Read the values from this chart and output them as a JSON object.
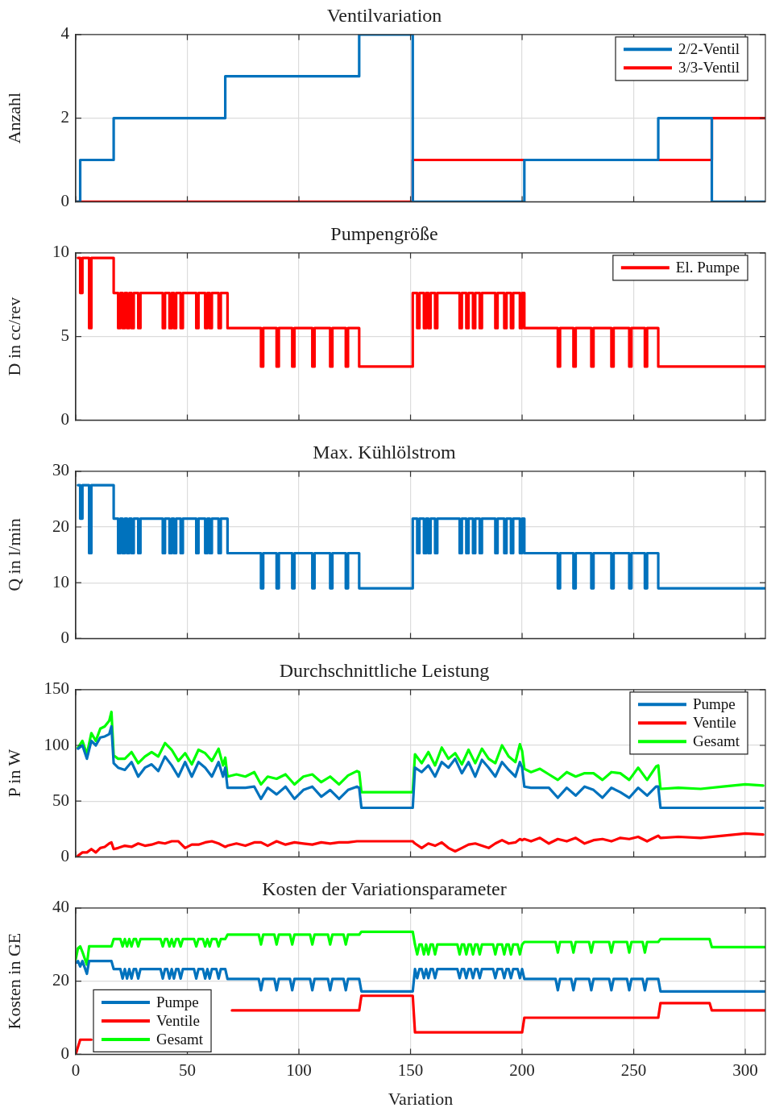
{
  "chart_data": [
    {
      "type": "step",
      "title": "Ventilvariation",
      "ylabel": "Anzahl",
      "xlim": [
        0,
        309
      ],
      "xticks": [
        0,
        50,
        100,
        150,
        200,
        250,
        300
      ],
      "ylim": [
        0,
        4
      ],
      "yticks": [
        0,
        2,
        4
      ],
      "grid": true,
      "legend": "top right",
      "tick_labels": "y",
      "series": [
        {
          "name": "2/2-Ventil",
          "color": "#0072bd",
          "x": [
            0,
            2,
            17,
            67,
            127,
            151,
            201,
            261,
            285,
            309
          ],
          "values": [
            0,
            1,
            2,
            3,
            4,
            0,
            1,
            2,
            0,
            0
          ]
        },
        {
          "name": "3/3-Ventil",
          "color": "#ff0000",
          "x": [
            0,
            151,
            285,
            309
          ],
          "values": [
            0,
            1,
            2,
            2
          ]
        }
      ]
    },
    {
      "type": "step",
      "title": "Pumpengröße",
      "ylabel": "D in cc/rev",
      "xlim": [
        0,
        309
      ],
      "xticks": [
        0,
        50,
        100,
        150,
        200,
        250,
        300
      ],
      "ylim": [
        0,
        10
      ],
      "yticks": [
        0,
        5,
        10
      ],
      "grid": true,
      "legend": "top right",
      "tick_labels": "y",
      "x": [
        1,
        2,
        3,
        6,
        7,
        17,
        19,
        20,
        21,
        22,
        23,
        24,
        25,
        26,
        28,
        29,
        39,
        40,
        42,
        43,
        44,
        45,
        47,
        48,
        54,
        55,
        58,
        59,
        60,
        61,
        64,
        65,
        68,
        83,
        84,
        90,
        91,
        97,
        98,
        106,
        107,
        114,
        115,
        121,
        122,
        127,
        151,
        153,
        154,
        156,
        157,
        158,
        159,
        161,
        162,
        172,
        173,
        175,
        176,
        178,
        179,
        181,
        182,
        188,
        189,
        192,
        193,
        195,
        196,
        199,
        200,
        201,
        216,
        217,
        223,
        224,
        231,
        232,
        240,
        241,
        248,
        249,
        255,
        256,
        261,
        309
      ],
      "series": [
        {
          "name": "El. Pumpe",
          "color": "#ff0000",
          "values": [
            9.7,
            7.6,
            9.7,
            5.5,
            9.7,
            7.6,
            5.5,
            7.6,
            5.5,
            7.6,
            5.5,
            7.6,
            5.5,
            7.6,
            5.5,
            7.6,
            5.5,
            7.6,
            5.5,
            7.6,
            5.5,
            7.6,
            5.5,
            7.6,
            5.5,
            7.6,
            5.5,
            7.6,
            5.5,
            7.6,
            5.5,
            7.6,
            5.5,
            3.2,
            5.5,
            3.2,
            5.5,
            3.2,
            5.5,
            3.2,
            5.5,
            3.2,
            5.5,
            3.2,
            5.5,
            3.2,
            7.6,
            5.5,
            7.6,
            5.5,
            7.6,
            5.5,
            7.6,
            5.5,
            7.6,
            5.5,
            7.6,
            5.5,
            7.6,
            5.5,
            7.6,
            5.5,
            7.6,
            5.5,
            7.6,
            5.5,
            7.6,
            5.5,
            7.6,
            5.5,
            7.6,
            5.5,
            3.2,
            5.5,
            3.2,
            5.5,
            3.2,
            5.5,
            3.2,
            5.5,
            3.2,
            5.5,
            3.2,
            5.5,
            3.2,
            3.2
          ]
        }
      ]
    },
    {
      "type": "step",
      "title": "Max. Kühlölstrom",
      "ylabel": "Q in l/min",
      "xlim": [
        0,
        309
      ],
      "xticks": [
        0,
        50,
        100,
        150,
        200,
        250,
        300
      ],
      "ylim": [
        0,
        30
      ],
      "yticks": [
        0,
        10,
        20,
        30
      ],
      "grid": true,
      "tick_labels": "y",
      "x": [
        1,
        2,
        3,
        6,
        7,
        17,
        19,
        20,
        21,
        22,
        23,
        24,
        25,
        26,
        28,
        29,
        39,
        40,
        42,
        43,
        44,
        45,
        47,
        48,
        54,
        55,
        58,
        59,
        60,
        61,
        64,
        65,
        68,
        83,
        84,
        90,
        91,
        97,
        98,
        106,
        107,
        114,
        115,
        121,
        122,
        127,
        151,
        153,
        154,
        156,
        157,
        158,
        159,
        161,
        162,
        172,
        173,
        175,
        176,
        178,
        179,
        181,
        182,
        188,
        189,
        192,
        193,
        195,
        196,
        199,
        200,
        201,
        216,
        217,
        223,
        224,
        231,
        232,
        240,
        241,
        248,
        249,
        255,
        256,
        261,
        309
      ],
      "series": [
        {
          "color": "#0072bd",
          "values": [
            27.5,
            21.5,
            27.5,
            15.3,
            27.5,
            21.5,
            15.3,
            21.5,
            15.3,
            21.5,
            15.3,
            21.5,
            15.3,
            21.5,
            15.3,
            21.5,
            15.3,
            21.5,
            15.3,
            21.5,
            15.3,
            21.5,
            15.3,
            21.5,
            15.3,
            21.5,
            15.3,
            21.5,
            15.3,
            21.5,
            15.3,
            21.5,
            15.3,
            9,
            15.3,
            9,
            15.3,
            9,
            15.3,
            9,
            15.3,
            9,
            15.3,
            9,
            15.3,
            9,
            21.5,
            15.3,
            21.5,
            15.3,
            21.5,
            15.3,
            21.5,
            15.3,
            21.5,
            15.3,
            21.5,
            15.3,
            21.5,
            15.3,
            21.5,
            15.3,
            21.5,
            15.3,
            21.5,
            15.3,
            21.5,
            15.3,
            21.5,
            15.3,
            21.5,
            15.3,
            9,
            15.3,
            9,
            15.3,
            9,
            15.3,
            9,
            15.3,
            9,
            15.3,
            9,
            15.3,
            9,
            9
          ]
        }
      ]
    },
    {
      "type": "line",
      "title": "Durchschnittliche Leistung",
      "ylabel": "P in W",
      "xlim": [
        0,
        309
      ],
      "xticks": [
        0,
        50,
        100,
        150,
        200,
        250,
        300
      ],
      "ylim": [
        0,
        150
      ],
      "yticks": [
        0,
        50,
        100,
        150
      ],
      "grid": true,
      "legend": "top right",
      "tick_labels": "y",
      "x": [
        1,
        3,
        5,
        7,
        9,
        11,
        13,
        15,
        16,
        17,
        19,
        22,
        25,
        28,
        31,
        34,
        37,
        40,
        43,
        46,
        49,
        52,
        55,
        58,
        61,
        64,
        66,
        67,
        68,
        72,
        76,
        80,
        83,
        86,
        90,
        94,
        98,
        102,
        106,
        110,
        114,
        118,
        122,
        126,
        127,
        128,
        140,
        150,
        151,
        152,
        155,
        158,
        161,
        164,
        167,
        170,
        173,
        176,
        179,
        182,
        185,
        188,
        191,
        194,
        197,
        199,
        200,
        201,
        204,
        208,
        212,
        216,
        220,
        224,
        228,
        232,
        236,
        240,
        244,
        248,
        252,
        256,
        260,
        261,
        262,
        270,
        280,
        290,
        300,
        308
      ],
      "series": [
        {
          "name": "Pumpe",
          "color": "#0072bd",
          "values": [
            97,
            100,
            88,
            104,
            100,
            107,
            108,
            110,
            117,
            84,
            80,
            78,
            85,
            72,
            80,
            83,
            77,
            90,
            82,
            72,
            85,
            72,
            85,
            80,
            72,
            85,
            72,
            80,
            62,
            62,
            62,
            63,
            52,
            62,
            56,
            63,
            52,
            60,
            63,
            54,
            60,
            52,
            60,
            63,
            62,
            44,
            44,
            44,
            44,
            80,
            76,
            82,
            72,
            85,
            80,
            88,
            75,
            85,
            72,
            87,
            80,
            72,
            85,
            78,
            72,
            85,
            80,
            63,
            62,
            62,
            62,
            53,
            62,
            55,
            63,
            60,
            53,
            62,
            58,
            53,
            62,
            55,
            63,
            63,
            44,
            44,
            44,
            44,
            44,
            44
          ]
        },
        {
          "name": "Ventile",
          "color": "#ff0000",
          "values": [
            1,
            4,
            4,
            7,
            4,
            8,
            9,
            12,
            13,
            7,
            8,
            10,
            9,
            12,
            10,
            11,
            13,
            12,
            14,
            14,
            8,
            11,
            11,
            13,
            14,
            12,
            10,
            9,
            10,
            12,
            10,
            13,
            13,
            10,
            14,
            11,
            13,
            12,
            11,
            13,
            12,
            13,
            13,
            14,
            14,
            14,
            14,
            14,
            14,
            12,
            8,
            12,
            10,
            13,
            8,
            5,
            8,
            11,
            12,
            10,
            8,
            12,
            15,
            12,
            13,
            16,
            15,
            16,
            14,
            17,
            12,
            16,
            14,
            17,
            12,
            15,
            16,
            14,
            17,
            16,
            18,
            14,
            18,
            19,
            17,
            18,
            17,
            19,
            21,
            20
          ]
        },
        {
          "name": "Gesamt",
          "color": "#00ff00",
          "values": [
            98,
            104,
            92,
            111,
            104,
            115,
            117,
            122,
            130,
            91,
            88,
            88,
            94,
            84,
            90,
            94,
            90,
            102,
            96,
            86,
            93,
            83,
            96,
            93,
            86,
            97,
            82,
            89,
            72,
            74,
            72,
            76,
            65,
            72,
            70,
            74,
            65,
            72,
            74,
            67,
            72,
            65,
            73,
            77,
            76,
            58,
            58,
            58,
            58,
            92,
            84,
            94,
            82,
            98,
            88,
            93,
            83,
            96,
            84,
            97,
            88,
            84,
            100,
            90,
            85,
            101,
            95,
            79,
            76,
            79,
            74,
            69,
            76,
            72,
            75,
            75,
            69,
            76,
            75,
            69,
            80,
            69,
            81,
            82,
            61,
            62,
            61,
            63,
            65,
            64
          ]
        }
      ]
    },
    {
      "type": "line",
      "title": "Kosten der Variationsparameter",
      "ylabel": "Kosten in GE",
      "xlabel": "Variation",
      "xlim": [
        0,
        309
      ],
      "xticks": [
        0,
        50,
        100,
        150,
        200,
        250,
        300
      ],
      "ylim": [
        0,
        40
      ],
      "yticks": [
        0,
        20,
        40
      ],
      "grid": true,
      "legend": "bottom left",
      "x": [
        0,
        1,
        2,
        3,
        5,
        6,
        16,
        17,
        20,
        21,
        22,
        23,
        24,
        25,
        26,
        27,
        28,
        29,
        38,
        39,
        40,
        41,
        42,
        43,
        44,
        45,
        46,
        47,
        48,
        53,
        54,
        55,
        57,
        58,
        59,
        60,
        61,
        63,
        64,
        65,
        67,
        68,
        82,
        83,
        84,
        89,
        90,
        91,
        96,
        97,
        98,
        105,
        106,
        107,
        113,
        114,
        115,
        120,
        121,
        122,
        127,
        128,
        151,
        152,
        153,
        154,
        155,
        156,
        157,
        158,
        159,
        160,
        161,
        162,
        171,
        172,
        173,
        174,
        175,
        176,
        177,
        178,
        179,
        180,
        181,
        182,
        187,
        188,
        189,
        191,
        192,
        193,
        194,
        195,
        196,
        198,
        199,
        200,
        201,
        215,
        216,
        217,
        222,
        223,
        224,
        230,
        231,
        232,
        239,
        240,
        241,
        247,
        248,
        249,
        254,
        255,
        256,
        261,
        262,
        284,
        285,
        309
      ],
      "series": [
        {
          "name": "Pumpe",
          "color": "#0072bd",
          "values": [
            25,
            25.5,
            24,
            25.5,
            22,
            25.5,
            25.5,
            23.3,
            23.3,
            20.7,
            23.3,
            20.7,
            23.3,
            20.7,
            23.3,
            23.3,
            20.7,
            23.3,
            23.3,
            20.7,
            23.3,
            23.3,
            20.7,
            23.3,
            20.7,
            23.3,
            23.3,
            20.7,
            23.3,
            23.3,
            20.7,
            23.3,
            23.3,
            20.7,
            23.3,
            20.7,
            23.3,
            23.3,
            20.7,
            23.3,
            23.3,
            20.6,
            20.6,
            17.5,
            20.6,
            20.6,
            17.5,
            20.6,
            20.6,
            17.5,
            20.6,
            20.6,
            17.5,
            20.6,
            20.6,
            17.5,
            20.6,
            20.6,
            17.5,
            20.6,
            20.6,
            17.2,
            17.2,
            23.3,
            20.8,
            23.3,
            23.3,
            20.8,
            23.3,
            20.8,
            23.3,
            23.3,
            20.8,
            23.3,
            23.3,
            20.8,
            23.3,
            23.3,
            20.8,
            23.3,
            23.3,
            20.8,
            23.3,
            23.3,
            20.8,
            23.3,
            23.3,
            20.8,
            23.3,
            23.3,
            20.8,
            23.3,
            23.3,
            20.8,
            23.3,
            23.3,
            20.8,
            23.3,
            20.6,
            20.6,
            17.5,
            20.6,
            20.6,
            17.5,
            20.6,
            20.6,
            17.5,
            20.6,
            20.6,
            17.5,
            20.6,
            20.6,
            17.5,
            20.6,
            20.6,
            17.5,
            20.6,
            20.6,
            17.2,
            17.2,
            17.2,
            17.2
          ]
        },
        {
          "name": "Ventile",
          "color": "#ff0000",
          "x": [
            0,
            2,
            7,
            8,
            70,
            127,
            128,
            151,
            152,
            200,
            201,
            261,
            262,
            284,
            285,
            309
          ],
          "values": [
            0,
            4,
            4,
            null,
            12,
            12,
            16,
            16,
            6,
            6,
            10,
            10,
            14,
            14,
            12,
            12
          ]
        },
        {
          "name": "Gesamt",
          "color": "#00ff00",
          "values": [
            26,
            29,
            29.5,
            28,
            24.5,
            29.5,
            29.5,
            31.5,
            31.5,
            29.5,
            31.5,
            29.5,
            31.5,
            29.5,
            31.5,
            31.5,
            29.5,
            31.5,
            31.5,
            29.5,
            31.5,
            31.5,
            29.5,
            31.5,
            29.5,
            31.5,
            31.5,
            29.5,
            31.5,
            31.5,
            29.5,
            31.5,
            31.5,
            29.5,
            31.5,
            29.5,
            31.5,
            31.5,
            29.5,
            31.5,
            31.5,
            32.7,
            32.7,
            30,
            32.7,
            32.7,
            30,
            32.7,
            32.7,
            30,
            32.7,
            32.7,
            30,
            32.7,
            32.7,
            30,
            32.7,
            32.7,
            30,
            32.7,
            32.7,
            33.5,
            33.5,
            30,
            27.3,
            30,
            30,
            27.3,
            30,
            27.3,
            30,
            30,
            27.3,
            30,
            30,
            27.3,
            30,
            30,
            27.3,
            30,
            30,
            27.3,
            30,
            30,
            27.3,
            30,
            30,
            27.3,
            30,
            30,
            27.3,
            30,
            30,
            27.3,
            30,
            30,
            27.3,
            30,
            30.7,
            30.7,
            27.8,
            30.7,
            30.7,
            27.8,
            30.7,
            30.7,
            27.8,
            30.7,
            30.7,
            27.8,
            30.7,
            30.7,
            27.8,
            30.7,
            30.7,
            27.8,
            30.7,
            30.7,
            31.5,
            31.5,
            29.3,
            29.3
          ]
        }
      ]
    }
  ]
}
